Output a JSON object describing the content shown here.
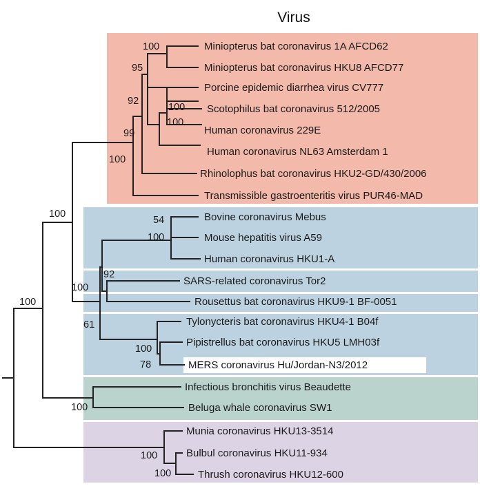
{
  "title": "Virus",
  "colors": {
    "group1": "#f3b9aa",
    "group2": "#bdd2e0",
    "group3": "#bad4cd",
    "group4": "#dcd4e5",
    "highlight": "#ffffff",
    "branch": "#222222"
  },
  "leaves": [
    "Miniopterus bat coronavirus 1A AFCD62",
    "Miniopterus bat coronavirus HKU8 AFCD77",
    "Porcine epidemic diarrhea virus CV777",
    "Scotophilus bat coronavirus 512/2005",
    "Human coronavirus 229E",
    "Human coronavirus NL63 Amsterdam 1",
    "Rhinolophus bat coronavirus HKU2-GD/430/2006",
    "Transmissible gastroenteritis virus PUR46-MAD",
    "Bovine coronavirus Mebus",
    "Mouse hepatitis virus A59",
    "Human coronavirus HKU1-A",
    "SARS-related coronavirus Tor2",
    "Rousettus bat coronavirus HKU9-1 BF-0051",
    "Tylonycteris bat coronavirus HKU4-1 B04f",
    "Pipistrellus bat coronavirus HKU5 LMH03f",
    "MERS coronavirus Hu/Jordan-N3/2012",
    "Infectious bronchitis virus Beaudette",
    "Beluga whale coronavirus SW1",
    "Munia coronavirus HKU13-3514",
    "Bulbul coronavirus HKU11-934",
    "Thrush coronavirus HKU12-600"
  ],
  "bootstrap": [
    "100",
    "95",
    "92",
    "100",
    "100",
    "99",
    "100",
    "100",
    "54",
    "100",
    "92",
    "100",
    "61",
    "100",
    "78",
    "100",
    "100",
    "100",
    "100"
  ]
}
